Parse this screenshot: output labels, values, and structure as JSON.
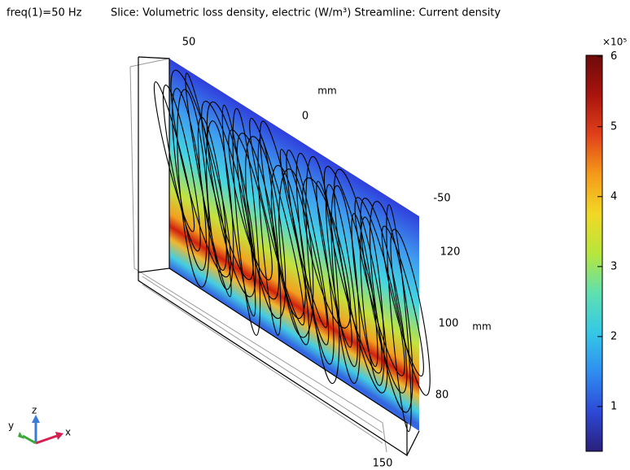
{
  "header": {
    "frequency": "freq(1)=50 Hz",
    "title": "Slice: Volumetric loss density, electric (W/m³)  Streamline: Current density"
  },
  "axes": {
    "x_ticks": [
      50,
      0,
      -50
    ],
    "x_unit": "mm",
    "z_ticks": [
      120,
      100,
      80
    ],
    "z_unit": "mm",
    "y_ticks": [
      150
    ]
  },
  "triad": {
    "x": "x",
    "y": "y",
    "z": "z"
  },
  "colorbar": {
    "type": "colorbar",
    "lim": [
      0.36,
      6.02
    ],
    "ticks": [
      1,
      2,
      3,
      4,
      5,
      6
    ],
    "multiplier": "×10⁵",
    "colors": [
      "#2a1f7a",
      "#2d49d6",
      "#2f8df0",
      "#35c8e6",
      "#5fe0b0",
      "#b8e63c",
      "#f2d824",
      "#f59a1a",
      "#e0401a",
      "#a8140e",
      "#6e0a0a"
    ]
  }
}
